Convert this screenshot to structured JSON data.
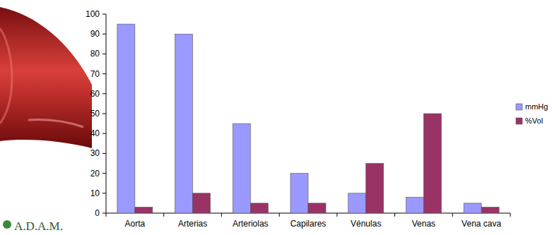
{
  "chart_data": {
    "type": "bar",
    "categories": [
      "Aorta",
      "Arterias",
      "Arteriolas",
      "Capilares",
      "Vénulas",
      "Venas",
      "Vena cava"
    ],
    "series": [
      {
        "name": "mmHg",
        "color": "#9999ff",
        "values": [
          95,
          90,
          45,
          20,
          10,
          8,
          5
        ]
      },
      {
        "name": "%Vol",
        "color": "#993366",
        "values": [
          3,
          10,
          5,
          5,
          25,
          50,
          3
        ]
      }
    ],
    "ylim": [
      0,
      100
    ],
    "yticks": [
      0,
      10,
      20,
      30,
      40,
      50,
      60,
      70,
      80,
      90,
      100
    ],
    "grid": false,
    "legend": "right"
  },
  "logo": "A.D.A.M."
}
